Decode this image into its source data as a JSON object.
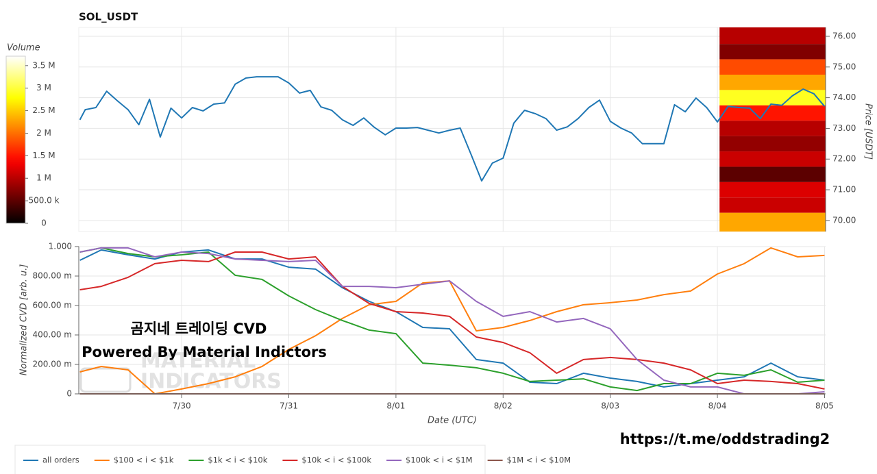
{
  "chart_data": [
    {
      "type": "line",
      "title": "SOL_USDT",
      "ylabel": "Price [USDT]",
      "xlim": [
        0.04,
        7.01
      ],
      "ylim": [
        69.64,
        76.29
      ],
      "yticks": [
        {
          "value": 70,
          "label": "70.00"
        },
        {
          "value": 71,
          "label": "71.00"
        },
        {
          "value": 72,
          "label": "72.00"
        },
        {
          "value": 73,
          "label": "73.00"
        },
        {
          "value": 74,
          "label": "74.00"
        },
        {
          "value": 75,
          "label": "75.00"
        },
        {
          "value": 76,
          "label": "76.00"
        }
      ],
      "grid": true,
      "x": [
        0.05,
        0.1,
        0.2,
        0.3,
        0.4,
        0.5,
        0.6,
        0.7,
        0.8,
        0.9,
        1.0,
        1.1,
        1.2,
        1.3,
        1.4,
        1.5,
        1.6,
        1.7,
        1.8,
        1.9,
        2.0,
        2.1,
        2.2,
        2.3,
        2.4,
        2.5,
        2.6,
        2.7,
        2.8,
        2.9,
        3.0,
        3.1,
        3.2,
        3.3,
        3.4,
        3.5,
        3.6,
        3.7,
        3.8,
        3.9,
        4.0,
        4.1,
        4.2,
        4.3,
        4.4,
        4.5,
        4.6,
        4.7,
        4.8,
        4.9,
        5.0,
        5.1,
        5.2,
        5.3,
        5.4,
        5.5,
        5.6,
        5.7,
        5.8,
        5.9,
        6.0,
        6.1,
        6.2,
        6.3,
        6.4,
        6.5,
        6.6,
        6.7,
        6.8,
        6.9,
        7.0
      ],
      "series": [
        {
          "color": "#1f77b4",
          "values": [
            73.28,
            73.61,
            73.68,
            74.21,
            73.9,
            73.61,
            73.12,
            73.95,
            72.72,
            73.66,
            73.34,
            73.68,
            73.57,
            73.79,
            73.83,
            74.44,
            74.64,
            74.68,
            74.68,
            74.68,
            74.48,
            74.15,
            74.24,
            73.7,
            73.59,
            73.28,
            73.1,
            73.34,
            73.03,
            72.79,
            73.01,
            73.01,
            73.03,
            72.94,
            72.85,
            72.94,
            73.01,
            72.16,
            71.29,
            71.87,
            72.03,
            73.17,
            73.59,
            73.48,
            73.32,
            72.94,
            73.05,
            73.32,
            73.68,
            73.92,
            73.23,
            73.01,
            72.85,
            72.5,
            72.5,
            72.5,
            73.77,
            73.54,
            73.99,
            73.68,
            73.21,
            73.72,
            73.68,
            73.66,
            73.32,
            73.79,
            73.75,
            74.06,
            74.28,
            74.13,
            73.72
          ]
        }
      ],
      "heatmap": {
        "x_start": 6.02,
        "levels": [
          76.0,
          75.5,
          75.0,
          74.5,
          74.0,
          73.5,
          73.0,
          72.5,
          72.0,
          71.5,
          71.0,
          70.5,
          70.0
        ],
        "values": [
          1000000,
          700000,
          1800000,
          2300000,
          2900000,
          1500000,
          1000000,
          800000,
          1100000,
          500000,
          1200000,
          1100000,
          2300000
        ]
      },
      "colorbar": {
        "title": "Volume",
        "clim": [
          0,
          3710000
        ],
        "ticks": [
          0,
          {
            "value": 500000,
            "label": "500.0 k"
          },
          {
            "value": 1000000,
            "label": "1 M"
          },
          {
            "value": 1500000,
            "label": "1.5 M"
          },
          {
            "value": 2000000,
            "label": "2 M"
          },
          {
            "value": 2500000,
            "label": "2.5 M"
          },
          {
            "value": 3000000,
            "label": "3 M"
          },
          {
            "value": 3500000,
            "label": "3.5 M"
          }
        ]
      }
    },
    {
      "type": "line",
      "xlabel": "Date (UTC)",
      "ylabel": "Normalized CVD [arb. u.]",
      "xlim": [
        0.04,
        7.01
      ],
      "ylim": [
        0,
        1
      ],
      "xticks": [
        {
          "value": 1,
          "label": "7/30"
        },
        {
          "value": 2,
          "label": "7/31"
        },
        {
          "value": 3,
          "label": "8/01"
        },
        {
          "value": 4,
          "label": "8/02"
        },
        {
          "value": 5,
          "label": "8/03"
        },
        {
          "value": 6,
          "label": "8/04"
        },
        {
          "value": 7,
          "label": "8/05"
        }
      ],
      "yticks": [
        0,
        {
          "value": 0.2,
          "label": "200.00 m"
        },
        {
          "value": 0.4,
          "label": "400.00 m"
        },
        {
          "value": 0.6,
          "label": "600.00 m"
        },
        {
          "value": 0.8,
          "label": "800.00 m"
        },
        {
          "value": 1,
          "label": "1.000"
        }
      ],
      "grid": true,
      "legend": "bottom",
      "x": [
        0.05,
        0.25,
        0.5,
        0.75,
        1.0,
        1.25,
        1.5,
        1.75,
        2.0,
        2.25,
        2.5,
        2.75,
        3.0,
        3.25,
        3.5,
        3.75,
        4.0,
        4.25,
        4.5,
        4.75,
        5.0,
        5.25,
        5.5,
        5.75,
        6.0,
        6.25,
        6.5,
        6.75,
        7.0
      ],
      "series": [
        {
          "name": "all orders",
          "color": "#1f77b4",
          "values": [
            0.907,
            0.977,
            0.944,
            0.916,
            0.963,
            0.977,
            0.916,
            0.916,
            0.86,
            0.847,
            0.721,
            0.628,
            0.558,
            0.451,
            0.442,
            0.233,
            0.209,
            0.079,
            0.07,
            0.14,
            0.107,
            0.084,
            0.047,
            0.07,
            0.093,
            0.116,
            0.209,
            0.116,
            0.093
          ]
        },
        {
          "name": "$100 < i < $1k",
          "color": "#ff7f0e",
          "values": [
            0.149,
            0.186,
            0.163,
            0,
            0.033,
            0.07,
            0.116,
            0.186,
            0.302,
            0.395,
            0.512,
            0.605,
            0.628,
            0.753,
            0.767,
            0.428,
            0.451,
            0.498,
            0.558,
            0.605,
            0.619,
            0.637,
            0.674,
            0.698,
            0.814,
            0.884,
            0.991,
            0.93,
            0.94
          ]
        },
        {
          "name": "$1k < i < $10k",
          "color": "#2ca02c",
          "values": [
            0.963,
            0.991,
            0.953,
            0.93,
            0.944,
            0.963,
            0.805,
            0.777,
            0.665,
            0.572,
            0.498,
            0.433,
            0.409,
            0.209,
            0.195,
            0.177,
            0.14,
            0.084,
            0.093,
            0.102,
            0.047,
            0.023,
            0.07,
            0.07,
            0.14,
            0.126,
            0.163,
            0.079,
            0.093
          ]
        },
        {
          "name": "$10k < i < $100k",
          "color": "#d62728",
          "values": [
            0.707,
            0.73,
            0.791,
            0.884,
            0.907,
            0.898,
            0.963,
            0.963,
            0.916,
            0.93,
            0.73,
            0.614,
            0.558,
            0.549,
            0.526,
            0.386,
            0.349,
            0.279,
            0.14,
            0.233,
            0.247,
            0.233,
            0.209,
            0.163,
            0.07,
            0.093,
            0.084,
            0.07,
            0.033
          ]
        },
        {
          "name": "$100k < i < $1M",
          "color": "#9467bd",
          "values": [
            0.963,
            0.991,
            0.991,
            0.93,
            0.963,
            0.953,
            0.916,
            0.907,
            0.898,
            0.907,
            0.73,
            0.73,
            0.721,
            0.744,
            0.767,
            0.628,
            0.526,
            0.558,
            0.488,
            0.512,
            0.442,
            0.233,
            0.093,
            0.047,
            0.047,
            0,
            0,
            0,
            0.014
          ]
        },
        {
          "name": "$1M < i < $10M",
          "color": "#8c564b",
          "values": [
            0,
            0,
            0,
            0,
            0,
            0,
            0,
            0,
            0,
            0,
            0,
            0,
            0,
            0,
            0,
            0,
            0,
            0,
            0,
            0,
            0,
            0,
            0,
            0,
            0,
            0,
            0,
            0,
            0
          ]
        }
      ]
    }
  ],
  "overlay": {
    "watermark": [
      "MATERIAL",
      "INDICATORS"
    ],
    "headline": "곰지네 트레이딩 CVD",
    "powered": "Powered By Material Indictors",
    "link": "https://t.me/oddstrading2"
  }
}
